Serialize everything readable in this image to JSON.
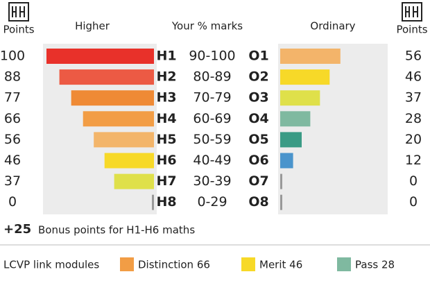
{
  "header": {
    "left_points": "Points",
    "higher": "Higher",
    "marks": "Your % marks",
    "ordinary": "Ordinary",
    "right_points": "Points"
  },
  "rows": [
    {
      "higher_grade": "H1",
      "marks": "90-100",
      "ordinary_grade": "O1",
      "higher_points": 100,
      "ordinary_points": 56,
      "higher_color": "#e8312a",
      "ordinary_color": "#f3b46a"
    },
    {
      "higher_grade": "H2",
      "marks": "80-89",
      "ordinary_grade": "O2",
      "higher_points": 88,
      "ordinary_points": 46,
      "higher_color": "#ec5a44",
      "ordinary_color": "#f7d928"
    },
    {
      "higher_grade": "H3",
      "marks": "70-79",
      "ordinary_grade": "O3",
      "higher_points": 77,
      "ordinary_points": 37,
      "higher_color": "#ef8a35",
      "ordinary_color": "#dfe04a"
    },
    {
      "higher_grade": "H4",
      "marks": "60-69",
      "ordinary_grade": "O4",
      "higher_points": 66,
      "ordinary_points": 28,
      "higher_color": "#f29d45",
      "ordinary_color": "#7fb9a0"
    },
    {
      "higher_grade": "H5",
      "marks": "50-59",
      "ordinary_grade": "O5",
      "higher_points": 56,
      "ordinary_points": 20,
      "higher_color": "#f3b56a",
      "ordinary_color": "#3a9b85"
    },
    {
      "higher_grade": "H6",
      "marks": "40-49",
      "ordinary_grade": "O6",
      "higher_points": 46,
      "ordinary_points": 12,
      "higher_color": "#f7d928",
      "ordinary_color": "#4a94cc"
    },
    {
      "higher_grade": "H7",
      "marks": "30-39",
      "ordinary_grade": "O7",
      "higher_points": 37,
      "ordinary_points": 0,
      "higher_color": "#dfe04a",
      "ordinary_color": "#999999"
    },
    {
      "higher_grade": "H8",
      "marks": "0-29",
      "ordinary_grade": "O8",
      "higher_points": 0,
      "ordinary_points": 0,
      "higher_color": "#999999",
      "ordinary_color": "#999999"
    }
  ],
  "bonus": {
    "value": "+25",
    "text": "Bonus points for H1-H6 maths"
  },
  "legend": {
    "title": "LCVP link modules",
    "items": [
      {
        "label": "Distinction 66",
        "color": "#f29d45"
      },
      {
        "label": "Merit 46",
        "color": "#f7d928"
      },
      {
        "label": "Pass 28",
        "color": "#7fb9a0"
      }
    ]
  }
}
